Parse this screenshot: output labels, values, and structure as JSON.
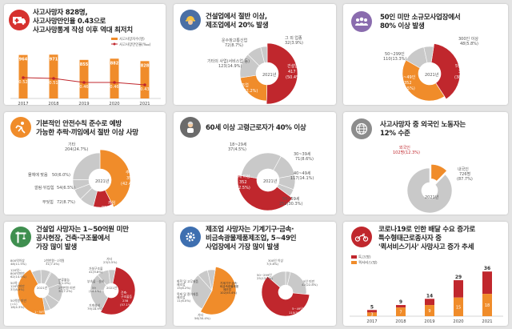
{
  "colors": {
    "red": "#c0272d",
    "orange": "#f08c2a",
    "gray": "#c9c9c9",
    "dark": "#333333"
  },
  "panel1": {
    "icon": "ambulance-icon",
    "title_lines": [
      "사고사망자 828명,",
      "사고사망만인율 0.43으로",
      "사고사망통계 작성 이후 역대 최저치"
    ],
    "legend": [
      "사고사망자수(명)",
      "사고사망만인율(‱)"
    ],
    "chart_data": {
      "type": "bar",
      "categories": [
        "2017",
        "2018",
        "2019",
        "2020",
        "2021"
      ],
      "series": [
        {
          "name": "사고사망자수(명)",
          "values": [
            964,
            971,
            855,
            882,
            828
          ]
        },
        {
          "name": "사고사망만인율(‱)",
          "values": [
            0.52,
            0.51,
            0.46,
            0.46,
            0.43
          ]
        }
      ],
      "bar_labels": [
        "964",
        "971",
        "855",
        "882",
        "828"
      ],
      "rate_labels": [
        "0.52",
        "0.51",
        "0.46",
        "0.46",
        "0.43"
      ]
    }
  },
  "panel2": {
    "icon": "worker-helmet-icon",
    "title_lines": [
      "건설업에서 절반 이상,",
      "제조업에서 20% 발생"
    ],
    "labels": {
      "center": "2021년",
      "construction": [
        "건설업",
        "417",
        "(50.4%)"
      ],
      "manufacturing": [
        "제조업",
        "184(22.2%)"
      ],
      "etc": [
        "기타의 사업(서비스업 등)",
        "123(14.9%)"
      ],
      "transport": [
        "운수창고통신업",
        "72(8.7%)"
      ],
      "mining": [
        "그 외 업종",
        "32(3.9%)"
      ]
    },
    "chart_data": {
      "type": "pie",
      "categories": [
        "건설업",
        "제조업",
        "기타의 사업(서비스업 등)",
        "운수창고통신업",
        "그 외 업종"
      ],
      "values": [
        417,
        184,
        123,
        72,
        32
      ],
      "percent": [
        50.4,
        22.2,
        14.9,
        8.7,
        3.9
      ]
    }
  },
  "panel3": {
    "icon": "people-group-icon",
    "title_lines": [
      "50인 미만 소규모사업장에서",
      "80% 이상 발생"
    ],
    "labels": {
      "center": "2021년",
      "s1": [
        "5인 미만",
        "318",
        "(38.4%)"
      ],
      "s2": [
        "5~49인",
        "352",
        "(42.5%)"
      ],
      "s3": [
        "50~299인",
        "110(13.3%)"
      ],
      "s4": [
        "300인 이상",
        "48(5.8%)"
      ]
    },
    "chart_data": {
      "type": "pie",
      "categories": [
        "5인 미만",
        "5~49인",
        "50~299인",
        "300인 이상"
      ],
      "values": [
        318,
        352,
        110,
        48
      ],
      "percent": [
        38.4,
        42.5,
        13.3,
        5.8
      ]
    }
  },
  "panel4": {
    "icon": "falling-person-icon",
    "title_lines": [
      "기본적인 안전수칙 준수로 예방",
      "가능한 추락·끼임에서 절반 이상 사망"
    ],
    "labels": {
      "center": "2021년",
      "fall": [
        "추락",
        "351",
        "(42.4%)"
      ],
      "caught": [
        "끼임",
        "95(11.5%)"
      ],
      "etc": [
        "기타",
        "204(24.7%)"
      ],
      "collision": [
        "물체에 맞음",
        "50(6.0%)"
      ],
      "hit": [
        "깔림·뒤집힘",
        "54(6.5%)"
      ],
      "struck": [
        "부딪힘",
        "72(8.7%)"
      ]
    },
    "chart_data": {
      "type": "pie",
      "categories": [
        "추락",
        "끼임",
        "부딪힘",
        "깔림·뒤집힘",
        "물체에 맞음",
        "기타"
      ],
      "values": [
        351,
        95,
        72,
        54,
        50,
        204
      ],
      "percent": [
        42.4,
        11.5,
        8.7,
        6.5,
        6.0,
        24.7
      ]
    }
  },
  "panel5": {
    "icon": "elderly-person-icon",
    "title_lines": [
      "60세 이상 고령근로자가 40% 이상"
    ],
    "labels": {
      "center": "2021년",
      "a60": [
        "60세 이상",
        "352",
        "(42.5%)"
      ],
      "a50": [
        "50~59세",
        "251(30.3%)"
      ],
      "a40": [
        "40~49세",
        "117(14.1%)"
      ],
      "a30": [
        "30~39세",
        "71(8.6%)"
      ],
      "a18": [
        "18~29세",
        "37(4.5%)"
      ]
    },
    "chart_data": {
      "type": "pie",
      "categories": [
        "60세 이상",
        "50~59세",
        "40~49세",
        "30~39세",
        "18~29세"
      ],
      "values": [
        352,
        251,
        117,
        71,
        37
      ],
      "percent": [
        42.5,
        30.3,
        14.1,
        8.6,
        4.5
      ]
    }
  },
  "panel6": {
    "icon": "globe-icon",
    "title_lines": [
      "사고사망자 중 외국인 노동자는",
      "12% 수준"
    ],
    "labels": {
      "center": "2021년",
      "foreign": [
        "외국인",
        "102명(12.3%)"
      ],
      "domestic": [
        "내국인",
        "726명",
        "(87.7%)"
      ]
    },
    "chart_data": {
      "type": "pie",
      "categories": [
        "외국인",
        "내국인"
      ],
      "values": [
        102,
        726
      ],
      "percent": [
        12.3,
        87.7
      ]
    }
  },
  "panel7": {
    "icon": "crane-icon",
    "title_lines": [
      "건설업 사망자는 1~50억원 미만",
      "공사현장, 건축·구조물에서",
      "가장 많이 발생"
    ],
    "left_center": "2021년",
    "right_center": "2021년",
    "left_labels": [
      [
        "800억이상",
        "48(11.5%)"
      ],
      [
        "120억~",
        "800억미만",
        "62(14.9%)"
      ],
      [
        "50억~",
        "120억미만",
        "37(8.9%)"
      ],
      [
        "50억원 미만",
        "(=1)",
        "18(4.3%)"
      ],
      [
        "1~50억원",
        "186(44.6%)"
      ],
      [
        "분류불능",
        "4(1.0%)"
      ],
      [
        "2천만원 미만",
        "30(7.2%)"
      ],
      [
        "2천만원~1억원",
        "31(7.4%)"
      ]
    ],
    "right_labels": [
      [
        "건축·",
        "구조물등",
        "238",
        "(57.1%)"
      ],
      [
        "기계설비",
        "79(18.9%)"
      ],
      [
        "부속물 · 설비",
        "",
        "59",
        "(14.1%)"
      ],
      [
        "가설구조물",
        "41(9.8%)"
      ],
      [
        "기타",
        "23(5.5%)"
      ]
    ],
    "chart_data": [
      {
        "type": "pie",
        "categories": [
          "1~50억원",
          "800억이상",
          "120억~800억미만",
          "50억~120억미만",
          "2천만원 미만",
          "2천만원~1억원",
          "50억원 미만(=1)",
          "분류불능"
        ],
        "values": [
          186,
          48,
          62,
          37,
          30,
          31,
          18,
          4
        ]
      },
      {
        "type": "pie",
        "categories": [
          "건축·구조물등",
          "기계설비",
          "부속물·설비",
          "가설구조물",
          "기타"
        ],
        "values": [
          238,
          79,
          59,
          41,
          23
        ]
      }
    ]
  },
  "panel8": {
    "icon": "gear-icon",
    "title_lines": [
      "제조업 사망자는 기계기구·금속·",
      "비금속광물제품제조업, 5~49인",
      "사업장에서 가장 많이 발생"
    ],
    "left_labels": [
      [
        "기계기구·금속·",
        "비금속광물제품",
        "제조업",
        "102(55.4%)"
      ],
      [
        "화학 및 고무제품",
        "제조업",
        "15(8.2%)"
      ],
      [
        "목재 및 종이제품",
        "제조업",
        "11(6.0%)"
      ],
      [
        "기타",
        "56(30.4%)"
      ]
    ],
    "right_labels": [
      [
        "300인 이상",
        "7(3.8%)"
      ],
      [
        "5인 미만",
        "42(22.8%)"
      ],
      [
        "5~49인",
        "110(59.8%)"
      ],
      [
        "50~299인",
        "25(13.6%)"
      ]
    ],
    "chart_data": [
      {
        "type": "pie",
        "categories": [
          "기계기구·금속·비금속광물제품제조업",
          "화학 및 고무제품제조업",
          "목재 및 종이제품제조업",
          "기타"
        ],
        "values": [
          102,
          15,
          11,
          56
        ]
      },
      {
        "type": "pie",
        "categories": [
          "5~49인",
          "50~299인",
          "300인 이상",
          "5인 미만"
        ],
        "values": [
          110,
          25,
          7,
          42
        ]
      }
    ]
  },
  "panel9": {
    "icon": "motorcycle-icon",
    "title_lines": [
      "코로나19로 인한 배달 수요 증가로",
      "특수형태근로종사자 중",
      "'퀵서비스기사' 사망사고 증가 추세"
    ],
    "legend": [
      "특고(명)",
      "퀵서비스(명)"
    ],
    "chart_data": {
      "type": "bar",
      "categories": [
        "2017",
        "2018",
        "2019",
        "2020",
        "2021"
      ],
      "series": [
        {
          "name": "특고(명)",
          "values": [
            5,
            9,
            14,
            29,
            36
          ]
        },
        {
          "name": "퀵서비스(명)",
          "values": [
            3,
            7,
            9,
            15,
            18
          ]
        }
      ]
    }
  }
}
